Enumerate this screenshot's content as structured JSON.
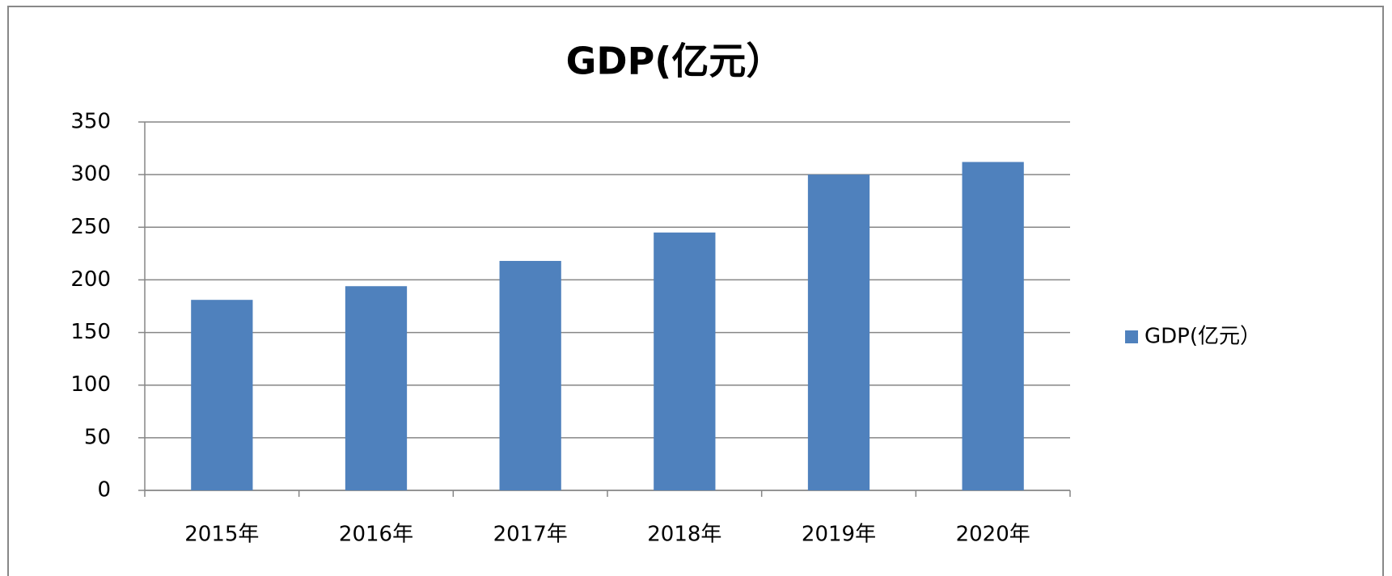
{
  "chart_data": {
    "type": "bar",
    "title": "GDP(亿元）",
    "categories": [
      "2015年",
      "2016年",
      "2017年",
      "2018年",
      "2019年",
      "2020年"
    ],
    "series": [
      {
        "name": "GDP(亿元）",
        "color": "#4f81bd",
        "values": [
          181,
          194,
          218,
          245,
          300,
          312
        ]
      }
    ],
    "ylim": [
      0,
      350
    ],
    "yticks": [
      0,
      50,
      100,
      150,
      200,
      250,
      300,
      350
    ],
    "grid": true,
    "legend": "right"
  }
}
